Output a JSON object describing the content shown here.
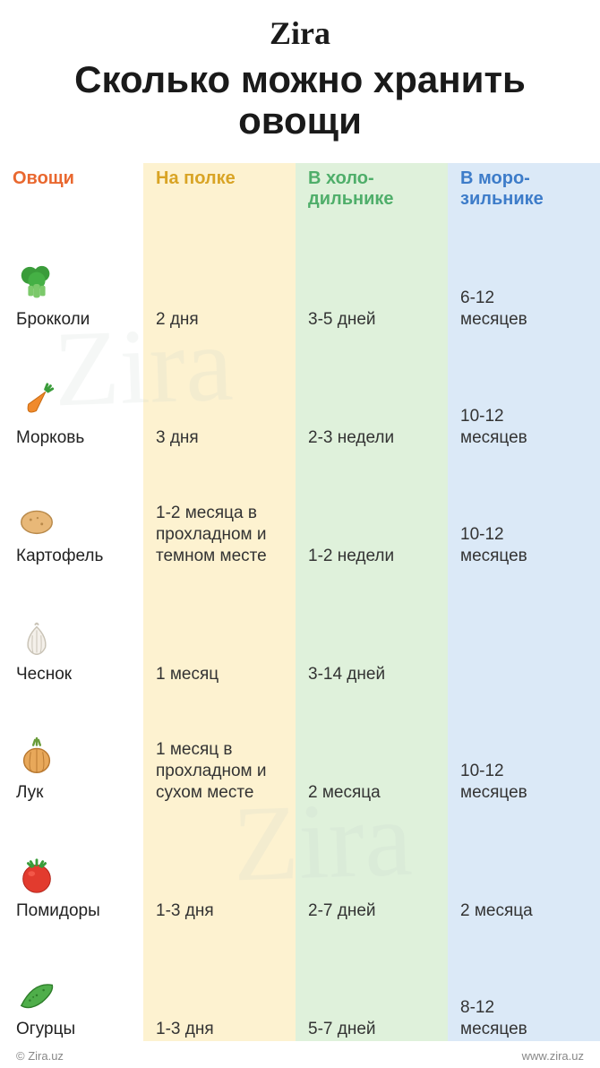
{
  "brand": "Zira",
  "title": "Сколько можно хранить овощи",
  "columns": {
    "c0": {
      "label": "Овощи",
      "color": "#e9682f",
      "bg": "#ffffff"
    },
    "c1": {
      "label": "На полке",
      "color": "#d9a425",
      "bg": "#fdf2d0"
    },
    "c2": {
      "label": "В холо-\nдильнике",
      "color": "#4fae6a",
      "bg": "#dff1db"
    },
    "c3": {
      "label": "В моро-\nзильнике",
      "color": "#3d7cc9",
      "bg": "#dbe9f7"
    }
  },
  "rows": [
    {
      "icon": "broccoli",
      "name": "Брокколи",
      "shelf": "2 дня",
      "fridge": "3-5 дней",
      "freezer": "6-12\nмесяцев"
    },
    {
      "icon": "carrot",
      "name": "Морковь",
      "shelf": "3 дня",
      "fridge": "2-3 недели",
      "freezer": "10-12\nмесяцев"
    },
    {
      "icon": "potato",
      "name": "Картофель",
      "shelf": "1-2 месяца в\nпрохладном и\nтемном месте",
      "fridge": "1-2 недели",
      "freezer": "10-12\nмесяцев"
    },
    {
      "icon": "garlic",
      "name": "Чеснок",
      "shelf": "1 месяц",
      "fridge": "3-14 дней",
      "freezer": ""
    },
    {
      "icon": "onion",
      "name": "Лук",
      "shelf": "1 месяц в\nпрохладном и\nсухом месте",
      "fridge": "2 месяца",
      "freezer": "10-12\nмесяцев"
    },
    {
      "icon": "tomato",
      "name": "Помидоры",
      "shelf": "1-3 дня",
      "fridge": "2-7 дней",
      "freezer": "2 месяца"
    },
    {
      "icon": "cucumber",
      "name": "Огурцы",
      "shelf": "1-3 дня",
      "fridge": "5-7 дней",
      "freezer": "8-12\nмесяцев"
    }
  ],
  "footer": {
    "left": "© Zira.uz",
    "right": "www.zira.uz"
  },
  "icons": {
    "broccoli": "<svg viewBox='0 0 48 48'><g><circle cx='16' cy='14' r='10' fill='#3a9c3a'/><circle cx='30' cy='12' r='9' fill='#3a9c3a'/><circle cx='24' cy='20' r='10' fill='#45b045'/><rect x='20' y='24' width='8' height='16' rx='3' fill='#7cc96b'/><rect x='14' y='26' width='6' height='12' rx='2' fill='#7cc96b'/><rect x='28' y='26' width='6' height='12' rx='2' fill='#7cc96b'/></g></svg>",
    "carrot": "<svg viewBox='0 0 48 48'><g transform='rotate(40 24 24)'><path d='M24 8 L30 32 Q24 44 18 32 Z' fill='#f08a2c' stroke='#c86a10' stroke-width='1'/><path d='M22 6 L20 0 M24 6 L24 -1 M26 6 L28 0' stroke='#3a9c3a' stroke-width='3' stroke-linecap='round'/></g></svg>",
    "potato": "<svg viewBox='0 0 48 48'><ellipse cx='24' cy='26' rx='18' ry='13' fill='#e8b878' stroke='#b8894a' stroke-width='1.5'/><circle cx='17' cy='23' r='1.5' fill='#b8894a'/><circle cx='30' cy='28' r='1.5' fill='#b8894a'/><circle cx='25' cy='21' r='1.2' fill='#b8894a'/></svg>",
    "garlic": "<svg viewBox='0 0 48 48'><path d='M24 10 Q12 22 14 34 Q18 42 24 42 Q30 42 34 34 Q36 22 24 10 Z' fill='#f4f0ea' stroke='#c9c3b6' stroke-width='1.5'/><path d='M24 14 Q24 40 24 40 M19 20 Q18 38 20 40 M29 20 Q30 38 28 40' stroke='#c9c3b6' stroke-width='1' fill='none'/><path d='M22 8 Q24 4 26 8' stroke='#c9c3b6' stroke-width='2' fill='none'/></svg>",
    "onion": "<svg viewBox='0 0 48 48'><ellipse cx='24' cy='28' rx='15' ry='14' fill='#e8a85a' stroke='#b87830' stroke-width='1.5'/><path d='M24 14 Q24 42 24 42 M17 18 Q14 38 18 40 M31 18 Q34 38 30 40' stroke='#b87830' stroke-width='1' fill='none'/><path d='M20 10 L22 4 M24 10 L24 2 M28 10 L26 4' stroke='#6a9c3a' stroke-width='2.5' stroke-linecap='round'/></svg>",
    "tomato": "<svg viewBox='0 0 48 48'><circle cx='24' cy='28' r='16' fill='#e23b2e' stroke='#b02218' stroke-width='1'/><ellipse cx='18' cy='22' rx='4' ry='3' fill='#ff6b5a' opacity='0.6'/><path d='M24 12 L24 6 M18 14 L14 10 M30 14 L34 10 M20 13 L17 8 M28 13 L31 8' stroke='#3a9c3a' stroke-width='3' stroke-linecap='round'/></svg>",
    "cucumber": "<svg viewBox='0 0 48 48'><path d='M6 38 Q20 10 42 14 Q44 22 30 34 Q16 44 6 38 Z' fill='#4fae4a' stroke='#2e7d2a' stroke-width='1.5'/><circle cx='16' cy='32' r='1.3' fill='#2e7d2a'/><circle cx='24' cy='26' r='1.3' fill='#2e7d2a'/><circle cx='32' cy='20' r='1.3' fill='#2e7d2a'/><circle cx='20' cy='28' r='1' fill='#2e7d2a'/></svg>"
  },
  "watermark_text": "Zira"
}
